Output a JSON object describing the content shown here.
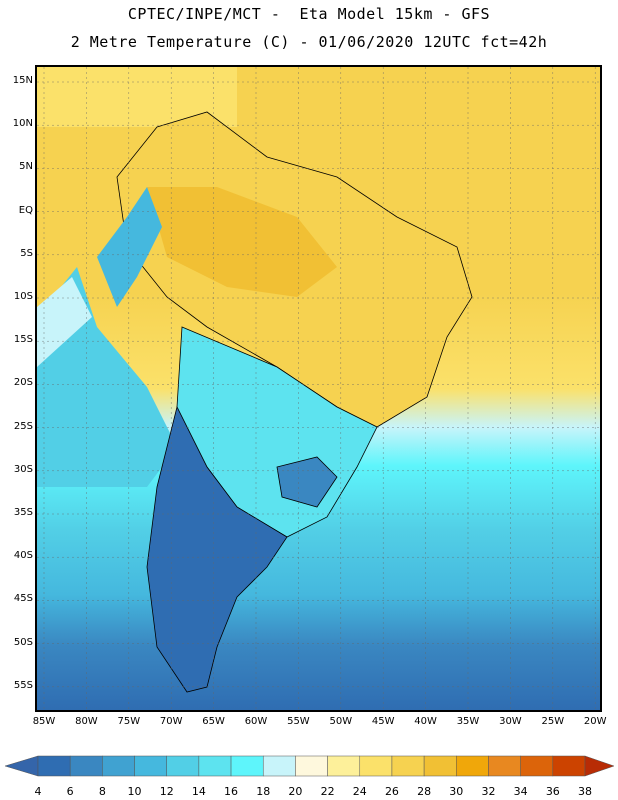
{
  "title_line1": "CPTEC/INPE/MCT -  Eta Model 15km - GFS",
  "title_line2": "2 Metre Temperature (C) - 01/06/2020 12UTC fct=42h",
  "lat_labels": [
    "15N",
    "10N",
    "5N",
    "EQ",
    "5S",
    "10S",
    "15S",
    "20S",
    "25S",
    "30S",
    "35S",
    "40S",
    "45S",
    "50S",
    "55S"
  ],
  "lon_labels": [
    "85W",
    "80W",
    "75W",
    "70W",
    "65W",
    "60W",
    "55W",
    "50W",
    "45W",
    "40W",
    "35W",
    "30W",
    "25W",
    "20W"
  ],
  "colorbar": {
    "levels": [
      "4",
      "6",
      "8",
      "10",
      "12",
      "14",
      "16",
      "18",
      "20",
      "22",
      "24",
      "26",
      "28",
      "30",
      "32",
      "34",
      "36",
      "38"
    ],
    "colors": [
      "#3465aa",
      "#2f6db2",
      "#3a87c1",
      "#40a2d1",
      "#45b8de",
      "#52cfe6",
      "#5de3ef",
      "#5ef5fb",
      "#c8f4fa",
      "#fef8dd",
      "#fdf09a",
      "#fbe16a",
      "#f6d250",
      "#f1c034",
      "#f0a70a",
      "#e88820",
      "#dc640a",
      "#cc4300",
      "#b82c05"
    ]
  }
}
